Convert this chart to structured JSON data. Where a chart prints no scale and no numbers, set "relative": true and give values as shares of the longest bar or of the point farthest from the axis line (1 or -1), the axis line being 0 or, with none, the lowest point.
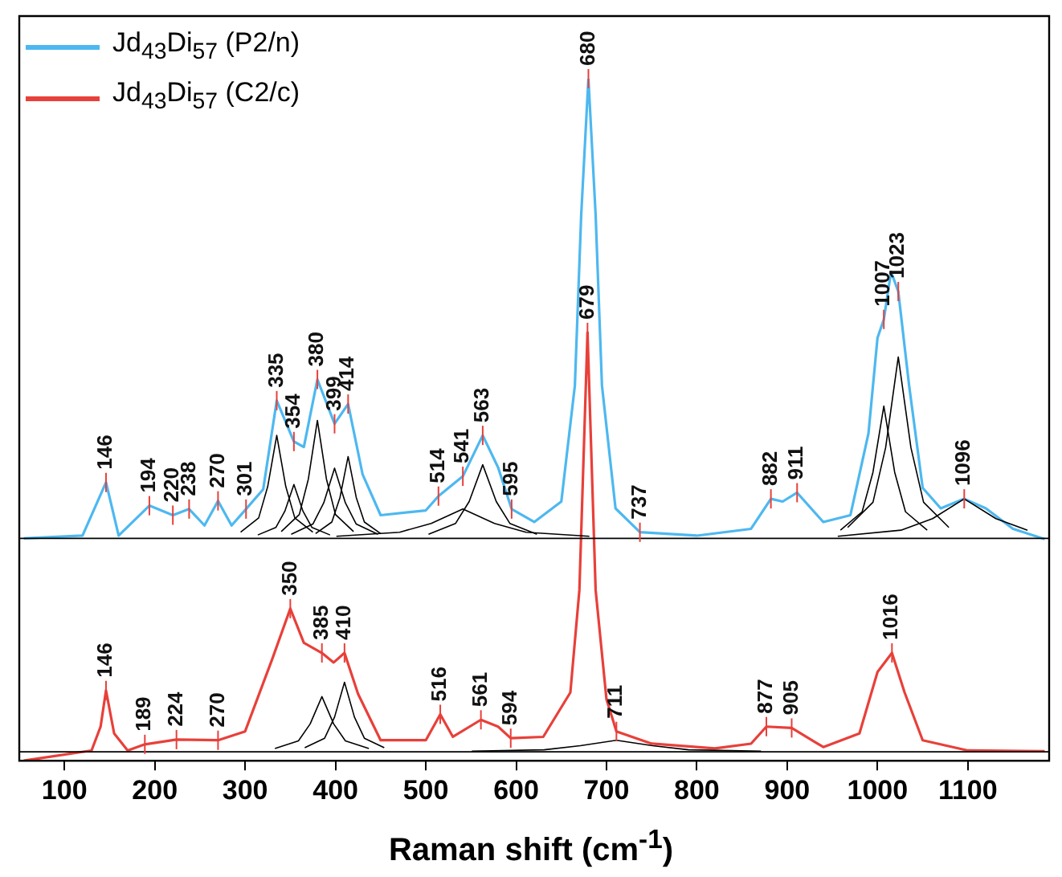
{
  "chart_data": {
    "type": "line",
    "relative": true,
    "xlabel": "Raman shift (cm$^{-1}$)",
    "xlim": [
      50,
      1190
    ],
    "xticks": [
      100,
      200,
      300,
      400,
      500,
      600,
      700,
      800,
      900,
      1000,
      1100
    ],
    "legend": "top left",
    "marker": "none",
    "series": [
      {
        "name": "Jd$_{43}$Di$_{57}$ (P2/n)",
        "color": "#4db8f0",
        "x": [
          55,
          120,
          146,
          160,
          194,
          220,
          238,
          255,
          270,
          285,
          301,
          320,
          335,
          354,
          365,
          380,
          399,
          414,
          430,
          450,
          500,
          514,
          541,
          563,
          580,
          595,
          620,
          650,
          665,
          672,
          680,
          688,
          695,
          710,
          737,
          800,
          860,
          882,
          895,
          911,
          940,
          970,
          990,
          1000,
          1007,
          1015,
          1023,
          1035,
          1050,
          1070,
          1096,
          1120,
          1150,
          1185
        ],
        "values": [
          0.326,
          0.33,
          0.408,
          0.33,
          0.374,
          0.36,
          0.369,
          0.345,
          0.381,
          0.345,
          0.369,
          0.398,
          0.528,
          0.468,
          0.46,
          0.559,
          0.494,
          0.523,
          0.42,
          0.36,
          0.367,
          0.388,
          0.417,
          0.477,
          0.43,
          0.369,
          0.35,
          0.38,
          0.55,
          0.8,
          1.0,
          0.8,
          0.55,
          0.37,
          0.335,
          0.33,
          0.34,
          0.384,
          0.38,
          0.393,
          0.35,
          0.36,
          0.48,
          0.62,
          0.647,
          0.717,
          0.688,
          0.55,
          0.4,
          0.37,
          0.384,
          0.37,
          0.34,
          0.325
        ]
      },
      {
        "name": "Jd$_{43}$Di$_{57}$ (C2/c)",
        "color": "#e8403a",
        "x": [
          55,
          130,
          140,
          146,
          155,
          170,
          189,
          224,
          270,
          300,
          330,
          350,
          365,
          385,
          398,
          410,
          425,
          450,
          500,
          516,
          530,
          561,
          580,
          594,
          630,
          660,
          670,
          679,
          688,
          700,
          711,
          750,
          820,
          860,
          877,
          905,
          940,
          980,
          1000,
          1016,
          1030,
          1050,
          1100,
          1185
        ],
        "values": [
          0,
          0.015,
          0.05,
          0.103,
          0.04,
          0.015,
          0.024,
          0.031,
          0.03,
          0.043,
          0.149,
          0.223,
          0.173,
          0.158,
          0.144,
          0.158,
          0.098,
          0.03,
          0.03,
          0.068,
          0.035,
          0.06,
          0.05,
          0.033,
          0.035,
          0.1,
          0.25,
          0.628,
          0.25,
          0.09,
          0.043,
          0.025,
          0.018,
          0.025,
          0.05,
          0.048,
          0.02,
          0.04,
          0.13,
          0.158,
          0.1,
          0.03,
          0.015,
          0.014
        ]
      },
      {
        "color": "#000000",
        "x": [
          50,
          1190
        ],
        "values": [
          0.326,
          0.326
        ]
      },
      {
        "color": "#000000",
        "x": [
          50,
          1190
        ],
        "values": [
          0.013,
          0.013
        ]
      },
      {
        "color": "#000000",
        "x": [
          295,
          315,
          325,
          335,
          345,
          355,
          375
        ],
        "values": [
          0.335,
          0.356,
          0.402,
          0.477,
          0.402,
          0.356,
          0.335
        ]
      },
      {
        "color": "#000000",
        "x": [
          314,
          334,
          344,
          354,
          364,
          374,
          394
        ],
        "values": [
          0.331,
          0.342,
          0.366,
          0.405,
          0.366,
          0.342,
          0.331
        ]
      },
      {
        "color": "#000000",
        "x": [
          340,
          360,
          370,
          380,
          390,
          400,
          420
        ],
        "values": [
          0.336,
          0.361,
          0.413,
          0.499,
          0.413,
          0.361,
          0.336
        ]
      },
      {
        "color": "#000000",
        "x": [
          351,
          375,
          387,
          399,
          411,
          423,
          447
        ],
        "values": [
          0.332,
          0.347,
          0.378,
          0.429,
          0.378,
          0.347,
          0.332
        ]
      },
      {
        "color": "#000000",
        "x": [
          378,
          396,
          405,
          414,
          423,
          432,
          450
        ],
        "values": [
          0.333,
          0.35,
          0.386,
          0.446,
          0.386,
          0.35,
          0.333
        ]
      },
      {
        "color": "#000000",
        "x": [
          401,
          471,
          506,
          541,
          576,
          611,
          681
        ],
        "values": [
          0.329,
          0.335,
          0.348,
          0.369,
          0.348,
          0.335,
          0.329
        ]
      },
      {
        "color": "#000000",
        "x": [
          503,
          533,
          548,
          563,
          578,
          593,
          623
        ],
        "values": [
          0.332,
          0.348,
          0.38,
          0.434,
          0.38,
          0.348,
          0.332
        ]
      },
      {
        "color": "#000000",
        "x": [
          959,
          983,
          995,
          1007,
          1019,
          1031,
          1055
        ],
        "values": [
          0.338,
          0.365,
          0.423,
          0.52,
          0.423,
          0.365,
          0.338
        ]
      },
      {
        "color": "#000000",
        "x": [
          967,
          995,
          1009,
          1023,
          1037,
          1051,
          1079
        ],
        "values": [
          0.342,
          0.379,
          0.459,
          0.592,
          0.459,
          0.379,
          0.342
        ]
      },
      {
        "color": "#000000",
        "x": [
          956,
          1026,
          1061,
          1096,
          1131,
          1166
        ],
        "values": [
          0.329,
          0.338,
          0.355,
          0.384,
          0.355,
          0.338
        ]
      },
      {
        "color": "#000000",
        "x": [
          333,
          359,
          372,
          385,
          398,
          411,
          437
        ],
        "values": [
          0.018,
          0.029,
          0.054,
          0.094,
          0.054,
          0.029,
          0.018
        ]
      },
      {
        "color": "#000000",
        "x": [
          366,
          388,
          399,
          410,
          421,
          432,
          454
        ],
        "values": [
          0.019,
          0.033,
          0.064,
          0.115,
          0.064,
          0.033,
          0.019
        ]
      },
      {
        "color": "#000000",
        "x": [
          551,
          631,
          671,
          711,
          751,
          791,
          871
        ],
        "values": [
          0.014,
          0.016,
          0.022,
          0.03,
          0.022,
          0.016,
          0.014
        ]
      }
    ],
    "annotations": [
      {
        "text": "146",
        "x": 146,
        "y": 0.408
      },
      {
        "text": "194",
        "x": 194,
        "y": 0.374
      },
      {
        "text": "220",
        "x": 220,
        "y": 0.36
      },
      {
        "text": "238",
        "x": 238,
        "y": 0.369
      },
      {
        "text": "270",
        "x": 270,
        "y": 0.381
      },
      {
        "text": "301",
        "x": 301,
        "y": 0.369
      },
      {
        "text": "335",
        "x": 335,
        "y": 0.528
      },
      {
        "text": "354",
        "x": 354,
        "y": 0.468
      },
      {
        "text": "380",
        "x": 380,
        "y": 0.559
      },
      {
        "text": "399",
        "x": 399,
        "y": 0.494
      },
      {
        "text": "414",
        "x": 414,
        "y": 0.523
      },
      {
        "text": "514",
        "x": 514,
        "y": 0.388
      },
      {
        "text": "541",
        "x": 541,
        "y": 0.417
      },
      {
        "text": "563",
        "x": 563,
        "y": 0.477
      },
      {
        "text": "595",
        "x": 595,
        "y": 0.369
      },
      {
        "text": "680",
        "x": 680,
        "y": 1.0
      },
      {
        "text": "679",
        "x": 679,
        "y": 0.628
      },
      {
        "text": "737",
        "x": 737,
        "y": 0.335
      },
      {
        "text": "882",
        "x": 882,
        "y": 0.384
      },
      {
        "text": "911",
        "x": 911,
        "y": 0.393
      },
      {
        "text": "1007",
        "x": 1007,
        "y": 0.647
      },
      {
        "text": "1023",
        "x": 1023,
        "y": 0.688
      },
      {
        "text": "1096",
        "x": 1096,
        "y": 0.384
      },
      {
        "text": "146",
        "x": 146,
        "y": 0.103
      },
      {
        "text": "189",
        "x": 189,
        "y": 0.024
      },
      {
        "text": "224",
        "x": 224,
        "y": 0.031
      },
      {
        "text": "270",
        "x": 270,
        "y": 0.03
      },
      {
        "text": "350",
        "x": 350,
        "y": 0.223
      },
      {
        "text": "385",
        "x": 385,
        "y": 0.158
      },
      {
        "text": "410",
        "x": 410,
        "y": 0.158
      },
      {
        "text": "516",
        "x": 516,
        "y": 0.068
      },
      {
        "text": "561",
        "x": 561,
        "y": 0.06
      },
      {
        "text": "594",
        "x": 594,
        "y": 0.033
      },
      {
        "text": "711",
        "x": 711,
        "y": 0.043
      },
      {
        "text": "877",
        "x": 877,
        "y": 0.05
      },
      {
        "text": "905",
        "x": 905,
        "y": 0.048
      },
      {
        "text": "1016",
        "x": 1016,
        "y": 0.158
      }
    ]
  }
}
